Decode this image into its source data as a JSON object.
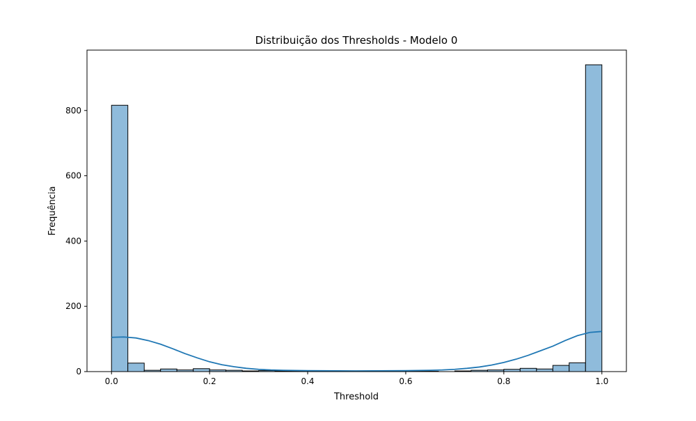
{
  "chart_data": {
    "type": "bar",
    "title": "Distribuição dos Thresholds - Modelo 0",
    "xlabel": "Threshold",
    "ylabel": "Frequência",
    "xlim": [
      -0.05,
      1.05
    ],
    "ylim": [
      0,
      985
    ],
    "x_ticks": [
      0.0,
      0.2,
      0.4,
      0.6,
      0.8,
      1.0
    ],
    "y_ticks": [
      0,
      200,
      400,
      600,
      800
    ],
    "grid": false,
    "bar_color": "#8fbbdb",
    "bar_edge_color": "#000000",
    "kde_color": "#1f77b4",
    "bins": [
      {
        "start": 0.0,
        "end": 0.0333,
        "count": 816
      },
      {
        "start": 0.0333,
        "end": 0.0667,
        "count": 26
      },
      {
        "start": 0.0667,
        "end": 0.1,
        "count": 4
      },
      {
        "start": 0.1,
        "end": 0.1333,
        "count": 8
      },
      {
        "start": 0.1333,
        "end": 0.1667,
        "count": 5
      },
      {
        "start": 0.1667,
        "end": 0.2,
        "count": 9
      },
      {
        "start": 0.2,
        "end": 0.2333,
        "count": 5
      },
      {
        "start": 0.2333,
        "end": 0.2667,
        "count": 4
      },
      {
        "start": 0.2667,
        "end": 0.3,
        "count": 2
      },
      {
        "start": 0.3,
        "end": 0.3333,
        "count": 3
      },
      {
        "start": 0.3333,
        "end": 0.3667,
        "count": 2
      },
      {
        "start": 0.3667,
        "end": 0.4,
        "count": 1
      },
      {
        "start": 0.4,
        "end": 0.4333,
        "count": 1
      },
      {
        "start": 0.4333,
        "end": 0.4667,
        "count": 1
      },
      {
        "start": 0.4667,
        "end": 0.5,
        "count": 0
      },
      {
        "start": 0.5,
        "end": 0.5333,
        "count": 0
      },
      {
        "start": 0.5333,
        "end": 0.5667,
        "count": 0
      },
      {
        "start": 0.5667,
        "end": 0.6,
        "count": 1
      },
      {
        "start": 0.6,
        "end": 0.6333,
        "count": 1
      },
      {
        "start": 0.6333,
        "end": 0.6667,
        "count": 1
      },
      {
        "start": 0.6667,
        "end": 0.7,
        "count": 0
      },
      {
        "start": 0.7,
        "end": 0.7333,
        "count": 2
      },
      {
        "start": 0.7333,
        "end": 0.7667,
        "count": 4
      },
      {
        "start": 0.7667,
        "end": 0.8,
        "count": 5
      },
      {
        "start": 0.8,
        "end": 0.8333,
        "count": 7
      },
      {
        "start": 0.8333,
        "end": 0.8667,
        "count": 10
      },
      {
        "start": 0.8667,
        "end": 0.9,
        "count": 8
      },
      {
        "start": 0.9,
        "end": 0.9333,
        "count": 19
      },
      {
        "start": 0.9333,
        "end": 0.9667,
        "count": 27
      },
      {
        "start": 0.9667,
        "end": 1.0,
        "count": 940
      }
    ],
    "kde_curve": [
      {
        "x": 0.0,
        "y": 105
      },
      {
        "x": 0.025,
        "y": 106
      },
      {
        "x": 0.05,
        "y": 103
      },
      {
        "x": 0.075,
        "y": 95
      },
      {
        "x": 0.1,
        "y": 84
      },
      {
        "x": 0.125,
        "y": 70
      },
      {
        "x": 0.15,
        "y": 55
      },
      {
        "x": 0.175,
        "y": 42
      },
      {
        "x": 0.2,
        "y": 30
      },
      {
        "x": 0.225,
        "y": 21
      },
      {
        "x": 0.25,
        "y": 15
      },
      {
        "x": 0.275,
        "y": 10
      },
      {
        "x": 0.3,
        "y": 7
      },
      {
        "x": 0.325,
        "y": 5
      },
      {
        "x": 0.35,
        "y": 4
      },
      {
        "x": 0.4,
        "y": 3
      },
      {
        "x": 0.5,
        "y": 2
      },
      {
        "x": 0.6,
        "y": 3
      },
      {
        "x": 0.65,
        "y": 4
      },
      {
        "x": 0.675,
        "y": 5
      },
      {
        "x": 0.7,
        "y": 7
      },
      {
        "x": 0.725,
        "y": 10
      },
      {
        "x": 0.75,
        "y": 14
      },
      {
        "x": 0.775,
        "y": 20
      },
      {
        "x": 0.8,
        "y": 28
      },
      {
        "x": 0.825,
        "y": 38
      },
      {
        "x": 0.85,
        "y": 50
      },
      {
        "x": 0.875,
        "y": 64
      },
      {
        "x": 0.9,
        "y": 78
      },
      {
        "x": 0.925,
        "y": 95
      },
      {
        "x": 0.95,
        "y": 110
      },
      {
        "x": 0.975,
        "y": 120
      },
      {
        "x": 1.0,
        "y": 123
      }
    ]
  }
}
